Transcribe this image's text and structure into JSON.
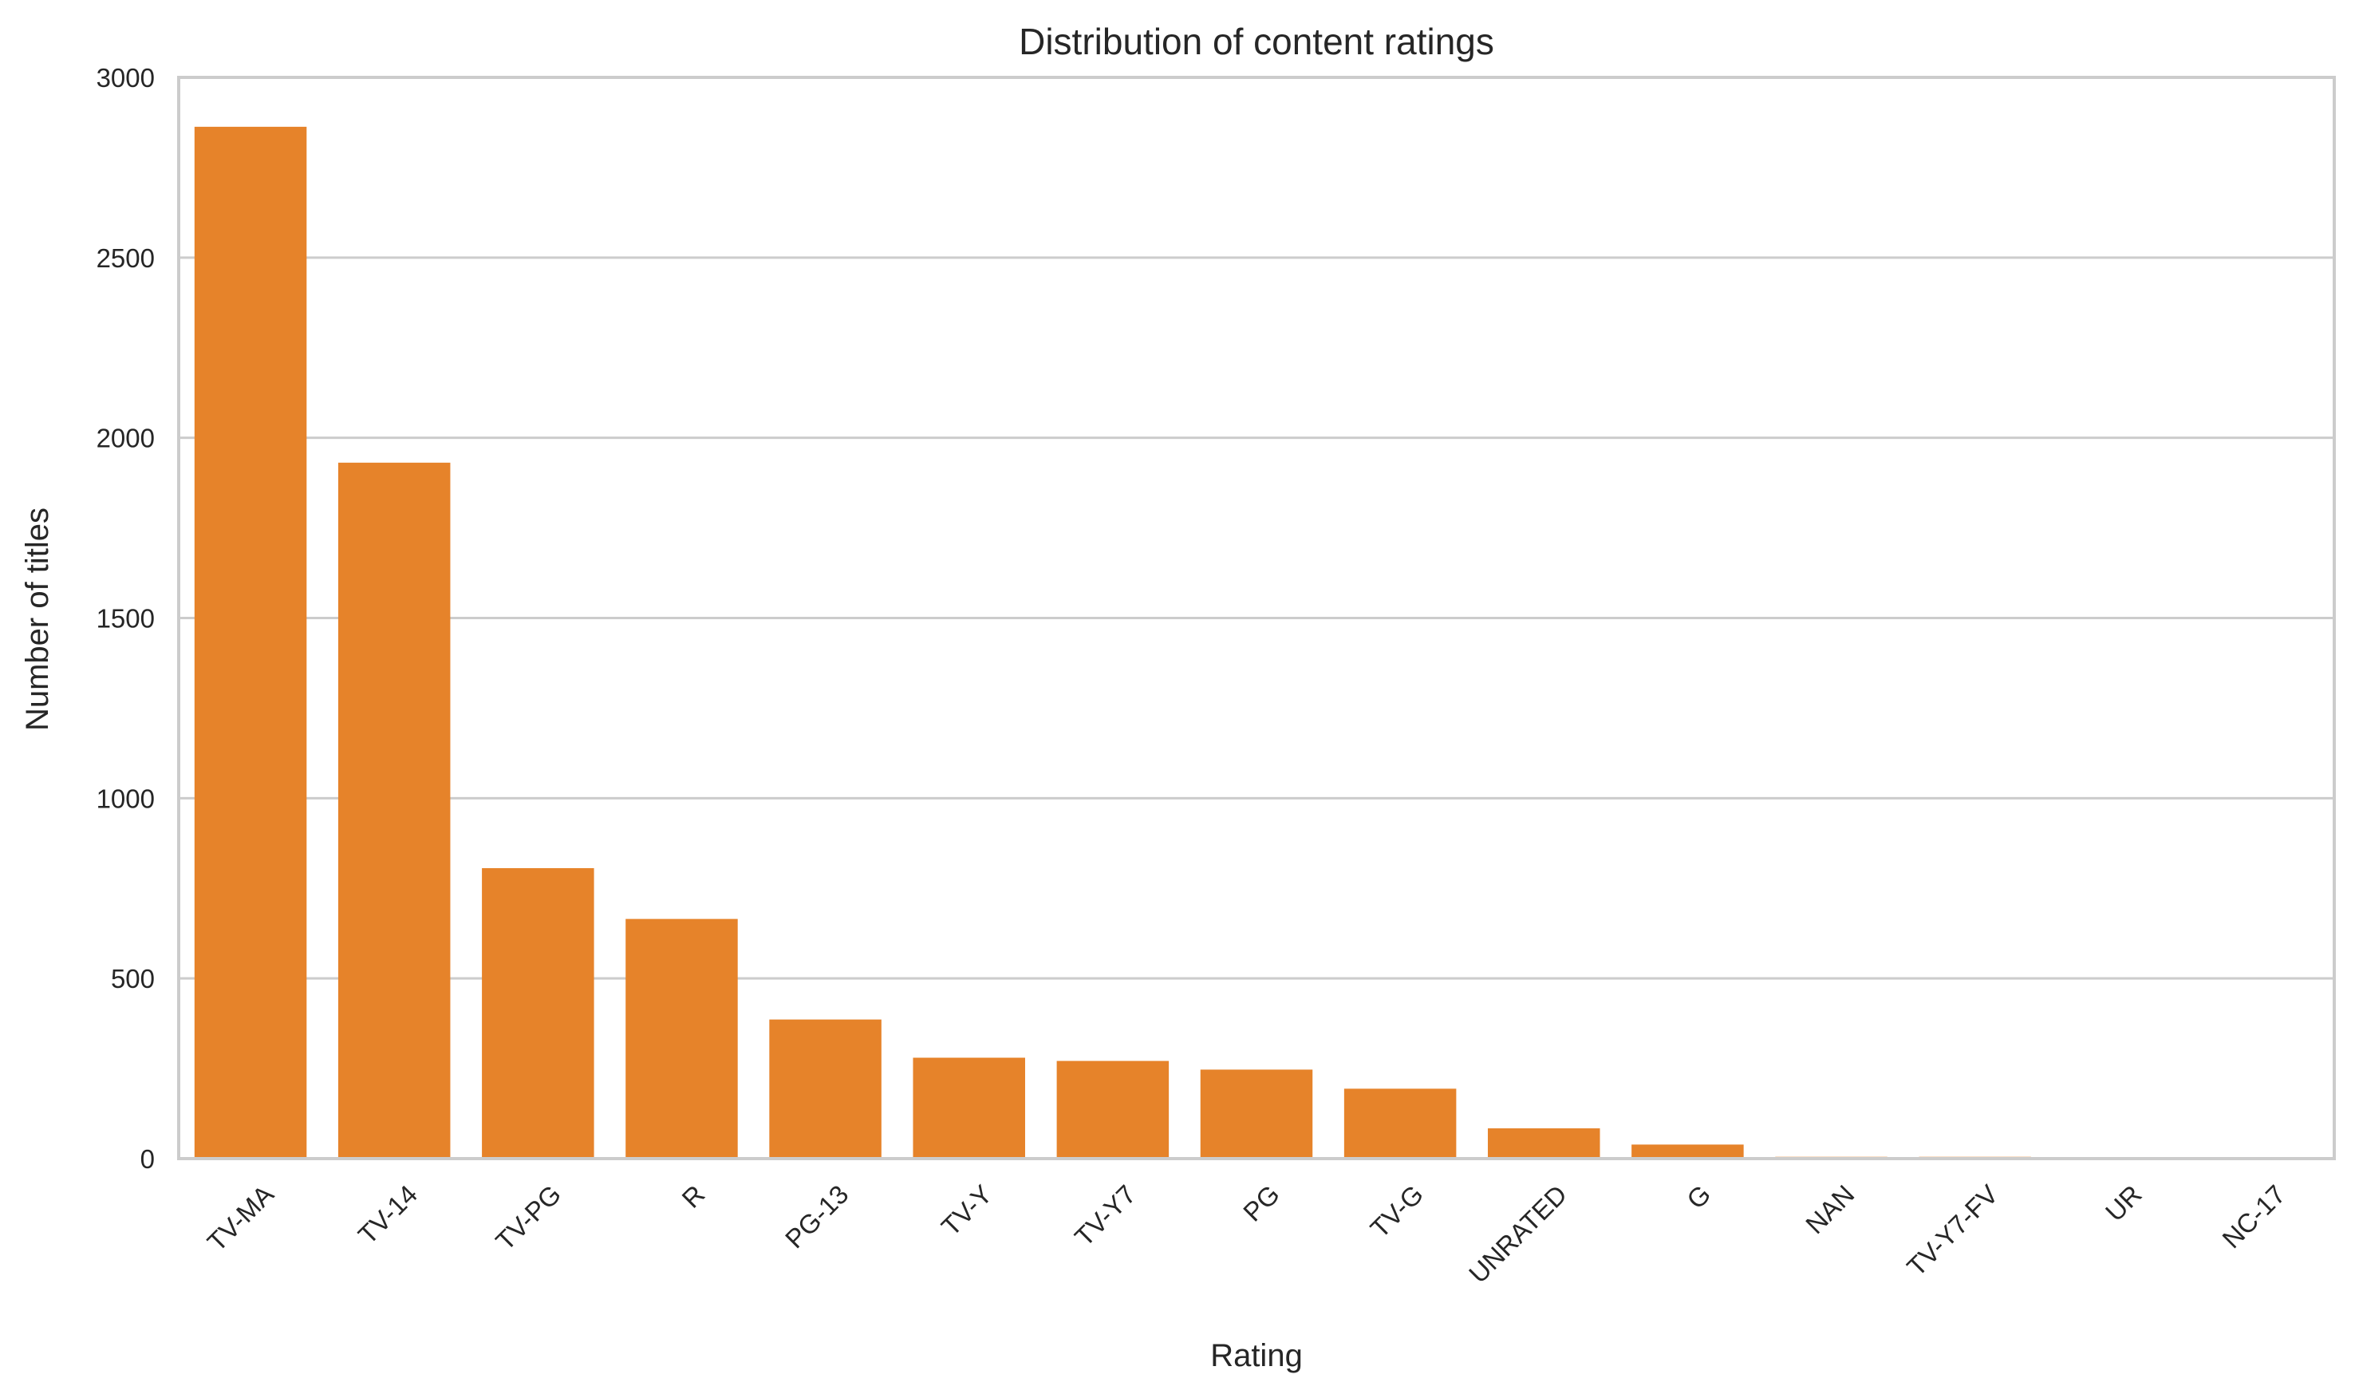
{
  "chart_data": {
    "type": "bar",
    "title": "Distribution of content ratings",
    "xlabel": "Rating",
    "ylabel": "Number of titles",
    "categories": [
      "TV-MA",
      "TV-14",
      "TV-PG",
      "R",
      "PG-13",
      "TV-Y",
      "TV-Y7",
      "PG",
      "TV-G",
      "UNRATED",
      "G",
      "NAN",
      "TV-Y7-FV",
      "UR",
      "NC-17"
    ],
    "values": [
      2863,
      1931,
      806,
      665,
      386,
      280,
      271,
      247,
      194,
      84,
      39,
      5,
      5,
      3,
      3
    ],
    "ylim": [
      0,
      3000
    ],
    "yticks": [
      0,
      500,
      1000,
      1500,
      2000,
      2500,
      3000
    ],
    "grid": "horizontal",
    "bar_color": "#e6832a",
    "grid_color": "#cccccc",
    "spine_color": "#cccccc"
  }
}
